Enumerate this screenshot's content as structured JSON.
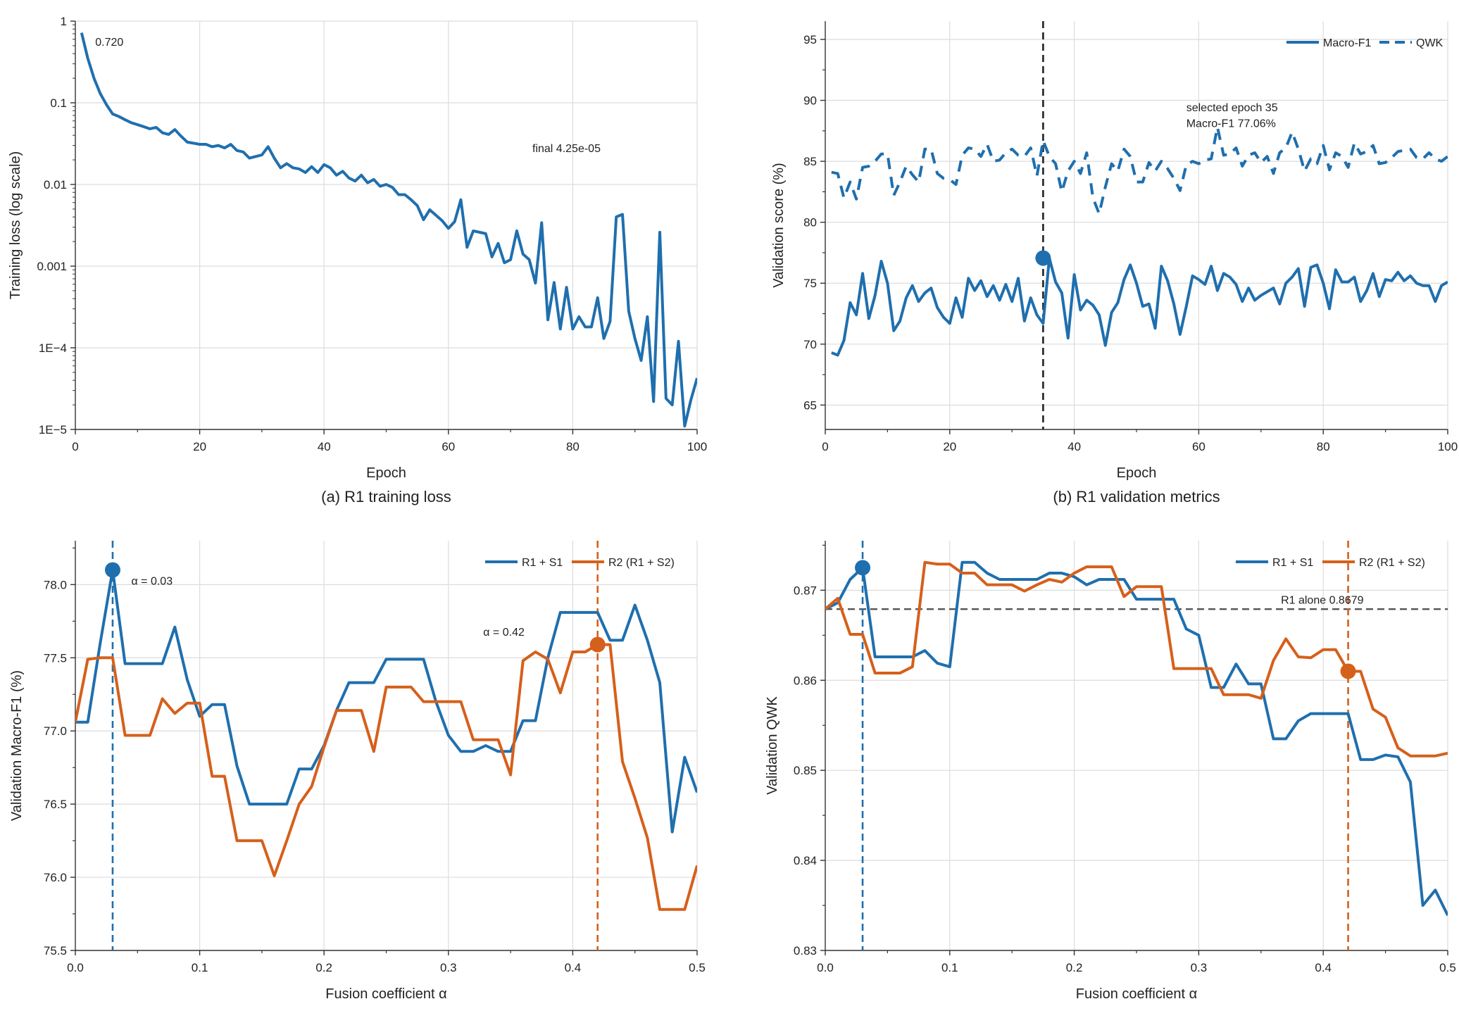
{
  "figure": {
    "captions": [
      "(a) R1 training loss",
      "(b) R1 validation metrics"
    ]
  },
  "colors": {
    "blue": "#1f6fae",
    "orange": "#d5601b",
    "grid": "#dcdcdc",
    "reference": "#555555",
    "marker_line": "#222222"
  },
  "chart_data": [
    {
      "id": "a",
      "type": "line",
      "caption": "(a) R1 training loss",
      "xlabel": "Epoch",
      "ylabel": "Training loss (log scale)",
      "xlim": [
        0,
        100
      ],
      "ylim": [
        1e-05,
        1
      ],
      "yscale": "log",
      "grid": true,
      "x_ticks": [
        0,
        20,
        40,
        60,
        80,
        100
      ],
      "x_tick_labels": [
        "0",
        "20",
        "40",
        "60",
        "80",
        "100"
      ],
      "y_ticks": [
        1e-05,
        0.0001,
        0.001,
        0.01,
        0.1,
        1
      ],
      "y_tick_labels": [
        "1E−5",
        "1E−4",
        "0.001",
        "0.01",
        "0.1",
        "1"
      ],
      "annotations": [
        {
          "text": "0.720",
          "x": 3.2,
          "y": 0.5
        },
        {
          "text": "final 4.25e-05",
          "x": 73.5,
          "y": 0.025
        }
      ],
      "series": [
        {
          "color": "#1f6fae",
          "style": "solid",
          "x_start": 1,
          "x_step": 1,
          "values": [
            0.72,
            0.35,
            0.2,
            0.13,
            0.095,
            0.073,
            0.068,
            0.062,
            0.057,
            0.054,
            0.051,
            0.048,
            0.05,
            0.043,
            0.041,
            0.047,
            0.039,
            0.033,
            0.032,
            0.031,
            0.031,
            0.029,
            0.03,
            0.028,
            0.031,
            0.026,
            0.025,
            0.021,
            0.022,
            0.023,
            0.029,
            0.021,
            0.016,
            0.018,
            0.016,
            0.0155,
            0.014,
            0.0165,
            0.014,
            0.0175,
            0.016,
            0.013,
            0.0145,
            0.012,
            0.011,
            0.013,
            0.0105,
            0.0115,
            0.0095,
            0.01,
            0.0092,
            0.0075,
            0.0075,
            0.0065,
            0.0055,
            0.0037,
            0.0049,
            0.0042,
            0.0036,
            0.0029,
            0.0035,
            0.0065,
            0.0017,
            0.0027,
            0.0026,
            0.0025,
            0.0013,
            0.0019,
            0.0011,
            0.0012,
            0.0027,
            0.0014,
            0.0012,
            0.00062,
            0.0034,
            0.00022,
            0.00063,
            0.00017,
            0.00055,
            0.00017,
            0.00024,
            0.00018,
            0.00018,
            0.00041,
            0.00013,
            0.00021,
            0.004,
            0.0043,
            0.00028,
            0.00013,
            7e-05,
            0.00024,
            2.2e-05,
            0.0026,
            2.4e-05,
            2e-05,
            0.00012,
            1.1e-05,
            2.3e-05,
            4.25e-05
          ]
        }
      ]
    },
    {
      "id": "b",
      "type": "line",
      "caption": "(b) R1 validation metrics",
      "xlabel": "Epoch",
      "ylabel": "Validation score (%)",
      "xlim": [
        0,
        100
      ],
      "ylim": [
        63,
        96.5
      ],
      "grid": true,
      "x_ticks": [
        0,
        20,
        40,
        60,
        80,
        100
      ],
      "x_tick_labels": [
        "0",
        "20",
        "40",
        "60",
        "80",
        "100"
      ],
      "y_ticks": [
        65,
        70,
        75,
        80,
        85,
        90,
        95
      ],
      "y_tick_labels": [
        "65",
        "70",
        "75",
        "80",
        "85",
        "90",
        "95"
      ],
      "vertical_line": {
        "x": 35,
        "color": "#222222",
        "style": "dashed"
      },
      "marker": {
        "x": 35,
        "y": 77.06,
        "color": "#1f6fae"
      },
      "annotations": [
        {
          "text": "selected epoch 35",
          "x": 58,
          "y": 89.1
        },
        {
          "text": "Macro-F1 77.06%",
          "x": 58,
          "y": 87.8
        }
      ],
      "legend": {
        "placement": "top-right",
        "entries": [
          "Macro-F1",
          "QWK"
        ]
      },
      "series": [
        {
          "name": "Macro-F1",
          "color": "#1f6fae",
          "style": "solid",
          "x_start": 1,
          "x_step": 1,
          "values": [
            69.3,
            69.1,
            70.3,
            73.4,
            72.4,
            75.8,
            72.1,
            74.0,
            76.8,
            75.0,
            71.1,
            71.9,
            73.8,
            74.8,
            73.5,
            74.2,
            74.6,
            73.0,
            72.2,
            71.7,
            73.8,
            72.2,
            75.4,
            74.4,
            75.2,
            73.9,
            74.8,
            73.6,
            74.9,
            73.5,
            75.4,
            71.9,
            73.8,
            72.4,
            71.7,
            77.06,
            75.1,
            74.2,
            70.5,
            75.7,
            72.8,
            73.6,
            73.2,
            72.4,
            69.9,
            72.6,
            73.4,
            75.3,
            76.5,
            75.0,
            73.1,
            73.3,
            71.3,
            76.4,
            75.2,
            73.3,
            70.8,
            73.1,
            75.6,
            75.3,
            74.9,
            76.4,
            74.4,
            75.8,
            75.5,
            74.9,
            73.5,
            74.6,
            73.6,
            74.0,
            74.3,
            74.6,
            73.3,
            75.0,
            75.5,
            76.2,
            73.1,
            76.3,
            76.5,
            75.0,
            72.9,
            76.1,
            75.1,
            75.1,
            75.5,
            73.5,
            74.4,
            75.8,
            73.9,
            75.3,
            75.2,
            75.9,
            75.2,
            75.6,
            75.0,
            74.8,
            74.8,
            73.5,
            74.8,
            75.1
          ]
        },
        {
          "name": "QWK",
          "color": "#1f6fae",
          "style": "dashed",
          "x_start": 1,
          "x_step": 1,
          "values": [
            84.1,
            84.0,
            82.0,
            83.3,
            81.9,
            84.5,
            84.6,
            85.0,
            85.6,
            85.6,
            82.2,
            83.3,
            84.6,
            83.9,
            83.3,
            86.0,
            86.0,
            84.0,
            83.6,
            83.5,
            83.1,
            85.5,
            86.1,
            86.0,
            85.4,
            86.4,
            85.0,
            85.1,
            85.7,
            86.0,
            85.5,
            85.4,
            86.1,
            83.8,
            86.7,
            85.4,
            84.8,
            82.5,
            84.2,
            85.0,
            84.0,
            85.7,
            82.0,
            80.7,
            82.9,
            84.8,
            84.2,
            86.0,
            85.4,
            83.3,
            83.3,
            84.9,
            84.2,
            85.0,
            84.4,
            83.6,
            82.6,
            84.7,
            85.0,
            84.8,
            85.1,
            85.2,
            87.8,
            85.5,
            85.6,
            86.1,
            84.6,
            85.5,
            85.7,
            84.9,
            85.4,
            84.0,
            85.7,
            86.1,
            87.4,
            86.0,
            84.2,
            85.2,
            84.8,
            86.3,
            84.3,
            85.7,
            85.4,
            84.5,
            86.5,
            85.6,
            85.8,
            86.3,
            84.8,
            84.9,
            85.3,
            85.8,
            85.9,
            86.0,
            85.3,
            85.2,
            85.7,
            85.2,
            85.0,
            85.4
          ]
        }
      ]
    },
    {
      "id": "c",
      "type": "line",
      "xlabel": "Fusion coefficient α",
      "ylabel": "Validation Macro-F1 (%)",
      "xlim": [
        0,
        0.5
      ],
      "ylim": [
        75.5,
        78.3
      ],
      "grid": true,
      "x_ticks": [
        0,
        0.1,
        0.2,
        0.3,
        0.4,
        0.5
      ],
      "x_tick_labels": [
        "0.0",
        "0.1",
        "0.2",
        "0.3",
        "0.4",
        "0.5"
      ],
      "y_ticks": [
        75.5,
        76.0,
        76.5,
        77.0,
        77.5,
        78.0
      ],
      "y_tick_labels": [
        "75.5",
        "76.0",
        "76.5",
        "77.0",
        "77.5",
        "78.0"
      ],
      "vertical_lines": [
        {
          "x": 0.03,
          "color": "#1f6fae",
          "style": "dashed"
        },
        {
          "x": 0.42,
          "color": "#d5601b",
          "style": "dashed"
        }
      ],
      "markers": [
        {
          "x": 0.03,
          "y": 78.1,
          "color": "#1f6fae"
        },
        {
          "x": 0.42,
          "y": 77.59,
          "color": "#d5601b"
        }
      ],
      "annotations": [
        {
          "text": "α = 0.03",
          "x": 0.045,
          "y": 78.0
        },
        {
          "text": "α = 0.42",
          "x": 0.328,
          "y": 77.65
        }
      ],
      "legend": {
        "placement": "top-right",
        "entries": [
          "R1 + S1",
          "R2 (R1 + S2)"
        ]
      },
      "x": [
        0.0,
        0.01,
        0.02,
        0.03,
        0.04,
        0.05,
        0.06,
        0.07,
        0.08,
        0.09,
        0.1,
        0.11,
        0.12,
        0.13,
        0.14,
        0.15,
        0.16,
        0.17,
        0.18,
        0.19,
        0.2,
        0.21,
        0.22,
        0.23,
        0.24,
        0.25,
        0.26,
        0.27,
        0.28,
        0.29,
        0.3,
        0.31,
        0.32,
        0.33,
        0.34,
        0.35,
        0.36,
        0.37,
        0.38,
        0.39,
        0.4,
        0.41,
        0.42,
        0.43,
        0.44,
        0.45,
        0.46,
        0.47,
        0.48,
        0.49,
        0.5
      ],
      "series": [
        {
          "name": "R1 + S1",
          "color": "#1f6fae",
          "values": [
            77.06,
            77.06,
            77.6,
            78.1,
            77.46,
            77.46,
            77.46,
            77.46,
            77.71,
            77.35,
            77.1,
            77.18,
            77.18,
            76.76,
            76.5,
            76.5,
            76.5,
            76.5,
            76.74,
            76.74,
            76.9,
            77.14,
            77.33,
            77.33,
            77.33,
            77.49,
            77.49,
            77.49,
            77.49,
            77.2,
            76.97,
            76.86,
            76.86,
            76.9,
            76.86,
            76.86,
            77.07,
            77.07,
            77.5,
            77.81,
            77.81,
            77.81,
            77.81,
            77.62,
            77.62,
            77.86,
            77.62,
            77.33,
            76.31,
            76.82,
            76.58
          ]
        },
        {
          "name": "R2 (R1 + S2)",
          "color": "#d5601b",
          "values": [
            77.06,
            77.49,
            77.5,
            77.5,
            76.97,
            76.97,
            76.97,
            77.22,
            77.12,
            77.19,
            77.19,
            76.69,
            76.69,
            76.25,
            76.25,
            76.25,
            76.01,
            76.25,
            76.5,
            76.62,
            76.89,
            77.14,
            77.14,
            77.14,
            76.86,
            77.3,
            77.3,
            77.3,
            77.2,
            77.2,
            77.2,
            77.2,
            76.94,
            76.94,
            76.94,
            76.7,
            77.48,
            77.54,
            77.49,
            77.26,
            77.54,
            77.54,
            77.59,
            77.59,
            76.79,
            76.54,
            76.27,
            75.78,
            75.78,
            75.78,
            76.08
          ]
        }
      ]
    },
    {
      "id": "d",
      "type": "line",
      "xlabel": "Fusion coefficient α",
      "ylabel": "Validation QWK",
      "xlim": [
        0,
        0.5
      ],
      "ylim": [
        0.83,
        0.8755
      ],
      "grid": true,
      "x_ticks": [
        0,
        0.1,
        0.2,
        0.3,
        0.4,
        0.5
      ],
      "x_tick_labels": [
        "0.0",
        "0.1",
        "0.2",
        "0.3",
        "0.4",
        "0.5"
      ],
      "y_ticks": [
        0.83,
        0.84,
        0.85,
        0.86,
        0.87
      ],
      "y_tick_labels": [
        "0.83",
        "0.84",
        "0.85",
        "0.86",
        "0.87"
      ],
      "reference_line": {
        "y": 0.8679,
        "color": "#555555",
        "style": "dashed"
      },
      "vertical_lines": [
        {
          "x": 0.03,
          "color": "#1f6fae",
          "style": "dashed"
        },
        {
          "x": 0.42,
          "color": "#d5601b",
          "style": "dashed"
        }
      ],
      "markers": [
        {
          "x": 0.03,
          "y": 0.8725,
          "color": "#1f6fae"
        },
        {
          "x": 0.42,
          "y": 0.861,
          "color": "#d5601b"
        }
      ],
      "annotations": [
        {
          "text": "R1 alone 0.8679",
          "x": 0.366,
          "y": 0.8685
        }
      ],
      "legend": {
        "placement": "top-right",
        "entries": [
          "R1 + S1",
          "R2 (R1 + S2)"
        ]
      },
      "x": [
        0.0,
        0.01,
        0.02,
        0.03,
        0.04,
        0.05,
        0.06,
        0.07,
        0.08,
        0.09,
        0.1,
        0.11,
        0.12,
        0.13,
        0.14,
        0.15,
        0.16,
        0.17,
        0.18,
        0.19,
        0.2,
        0.21,
        0.22,
        0.23,
        0.24,
        0.25,
        0.26,
        0.27,
        0.28,
        0.29,
        0.3,
        0.31,
        0.32,
        0.33,
        0.34,
        0.35,
        0.36,
        0.37,
        0.38,
        0.39,
        0.4,
        0.41,
        0.42,
        0.43,
        0.44,
        0.45,
        0.46,
        0.47,
        0.48,
        0.49,
        0.5
      ],
      "series": [
        {
          "name": "R1 + S1",
          "color": "#1f6fae",
          "values": [
            0.8679,
            0.8686,
            0.8712,
            0.8725,
            0.8626,
            0.8626,
            0.8626,
            0.8626,
            0.8633,
            0.8619,
            0.8615,
            0.8731,
            0.8731,
            0.8719,
            0.8712,
            0.8712,
            0.8712,
            0.8712,
            0.8719,
            0.8719,
            0.8715,
            0.8706,
            0.8712,
            0.8712,
            0.8712,
            0.869,
            0.869,
            0.869,
            0.869,
            0.8657,
            0.865,
            0.8592,
            0.8592,
            0.8618,
            0.8596,
            0.8596,
            0.8535,
            0.8535,
            0.8555,
            0.8563,
            0.8563,
            0.8563,
            0.8563,
            0.8512,
            0.8512,
            0.8517,
            0.8515,
            0.8487,
            0.835,
            0.8367,
            0.8339
          ]
        },
        {
          "name": "R2 (R1 + S2)",
          "color": "#d5601b",
          "values": [
            0.8679,
            0.8691,
            0.8651,
            0.8651,
            0.8608,
            0.8608,
            0.8608,
            0.8615,
            0.8731,
            0.8729,
            0.8729,
            0.8719,
            0.8719,
            0.8706,
            0.8706,
            0.8706,
            0.8699,
            0.8706,
            0.8712,
            0.8709,
            0.8719,
            0.8726,
            0.8726,
            0.8726,
            0.8693,
            0.8704,
            0.8704,
            0.8704,
            0.8613,
            0.8613,
            0.8613,
            0.8613,
            0.8584,
            0.8584,
            0.8584,
            0.858,
            0.8622,
            0.8646,
            0.8626,
            0.8625,
            0.8634,
            0.8634,
            0.861,
            0.861,
            0.8568,
            0.8559,
            0.8525,
            0.8516,
            0.8516,
            0.8516,
            0.8519
          ]
        }
      ]
    }
  ]
}
